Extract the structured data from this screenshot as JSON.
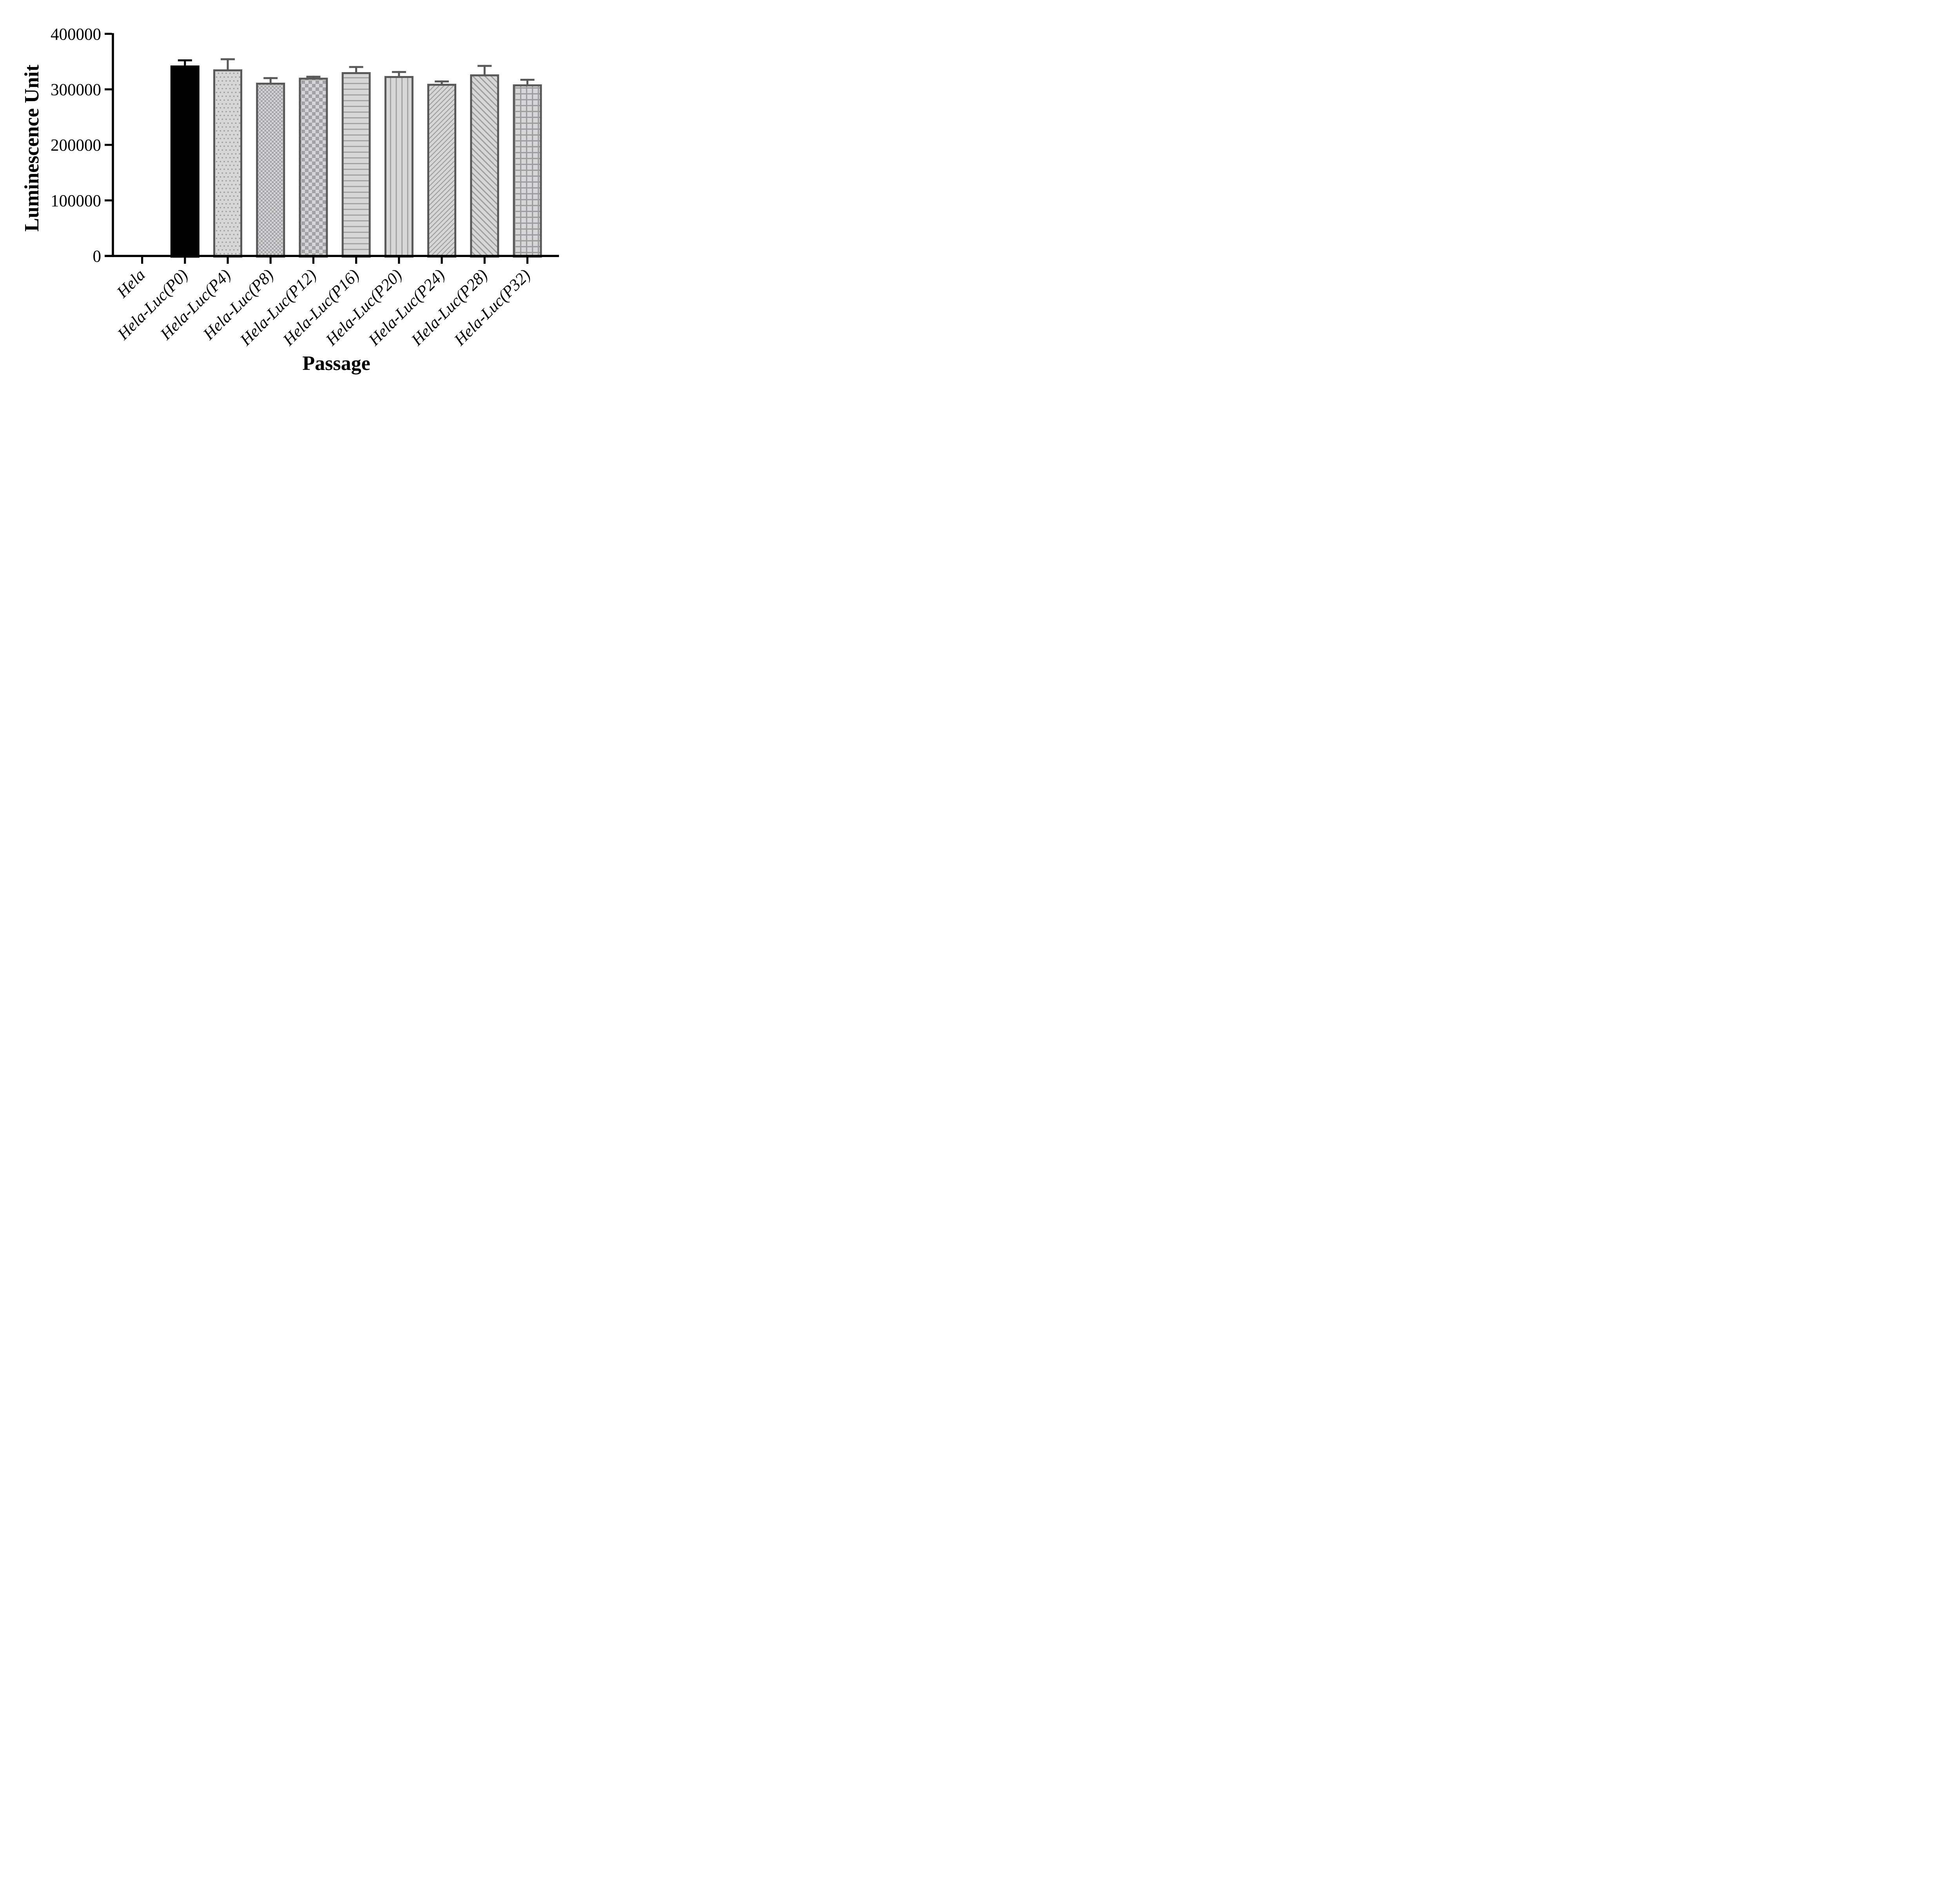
{
  "chart_data": {
    "type": "bar",
    "title": "",
    "categories": [
      "Hela",
      "Hela-Luc(P0)",
      "Hela-Luc(P4)",
      "Hela-Luc(P8)",
      "Hela-Luc(P12)",
      "Hela-Luc(P16)",
      "Hela-Luc(P20)",
      "Hela-Luc(P24)",
      "Hela-Luc(P28)",
      "Hela-Luc(P32)"
    ],
    "values": [
      0,
      343000,
      336000,
      312000,
      321000,
      331000,
      324000,
      310000,
      327000,
      309000
    ],
    "errors_upper": [
      0,
      11000,
      20000,
      10000,
      3500,
      11000,
      9000,
      6000,
      17000,
      10000
    ],
    "bar_patterns": [
      "none",
      "solid-black",
      "dots",
      "checker-fine",
      "checker-coarse",
      "horizontal-lines",
      "vertical-lines",
      "diagonal-up",
      "diagonal-down",
      "grid"
    ],
    "xlabel": "Passage",
    "ylabel": "Luminescence Unit",
    "ylim": [
      0,
      400000
    ],
    "yticks": [
      0,
      100000,
      200000,
      300000,
      400000
    ],
    "grid": false,
    "legend": "none",
    "colors": {
      "bar_border": "#595959",
      "pattern_gray": "#9c9ca1",
      "bar_fill": "#d7d7d7",
      "solid_bar": "#000000",
      "axis": "#000000"
    }
  }
}
